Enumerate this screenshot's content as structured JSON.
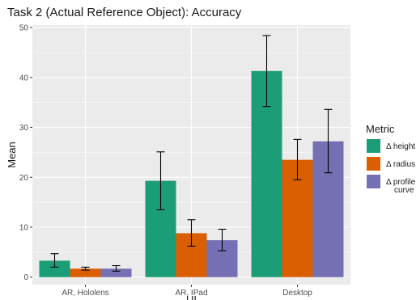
{
  "chart_data": {
    "type": "bar",
    "title": "Task 2 (Actual Reference Object): Accuracy",
    "xlabel": "UI",
    "ylabel": "Mean",
    "categories": [
      "AR, Hololens",
      "AR, IPad",
      "Desktop"
    ],
    "ylim": [
      -1.5,
      50.5
    ],
    "yticks": [
      0,
      10,
      20,
      30,
      40,
      50
    ],
    "grid": true,
    "legend_position": "right",
    "legend_title": "Metric",
    "series": [
      {
        "name": "Δ height",
        "legend_lines": [
          "Δ height"
        ],
        "color": "#1b9e77",
        "values": [
          3.3,
          19.3,
          41.3
        ],
        "errors": [
          [
            2.0,
            4.7
          ],
          [
            13.5,
            25.1
          ],
          [
            34.2,
            48.4
          ]
        ]
      },
      {
        "name": "Δ radius",
        "legend_lines": [
          "Δ radius"
        ],
        "color": "#d95f02",
        "values": [
          1.7,
          8.8,
          23.5
        ],
        "errors": [
          [
            1.4,
            2.0
          ],
          [
            6.2,
            11.5
          ],
          [
            19.5,
            27.6
          ]
        ]
      },
      {
        "name": "Δ profile curve",
        "legend_lines": [
          "Δ profile",
          "curve"
        ],
        "color": "#7570b3",
        "values": [
          1.7,
          7.4,
          27.2
        ],
        "errors": [
          [
            1.2,
            2.3
          ],
          [
            5.3,
            9.6
          ],
          [
            20.9,
            33.6
          ]
        ]
      }
    ]
  }
}
